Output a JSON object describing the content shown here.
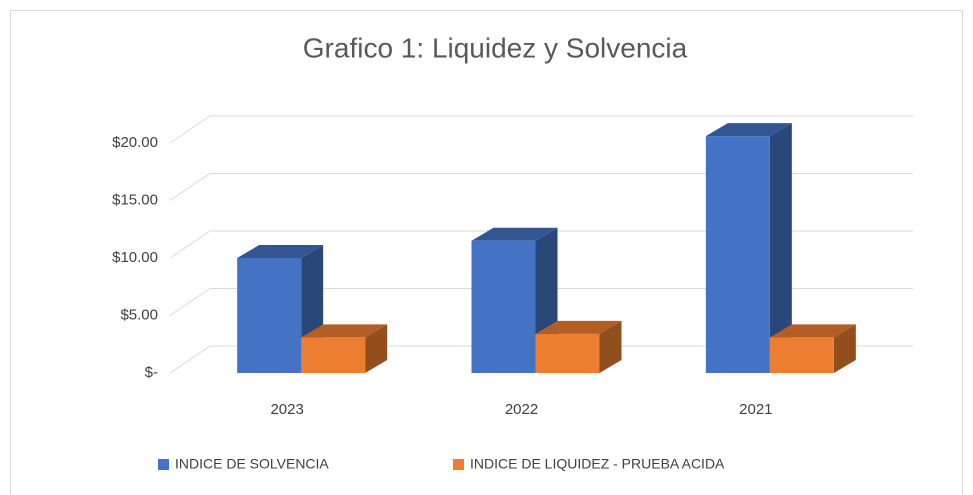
{
  "chart_data": {
    "type": "bar3d",
    "title": "Grafico 1: Liquidez y Solvencia",
    "categories": [
      "2023",
      "2022",
      "2021"
    ],
    "series": [
      {
        "name": "INDICE DE SOLVENCIA",
        "color": "#4472c4",
        "values": [
          10.0,
          11.5,
          20.6
        ]
      },
      {
        "name": "INDICE DE LIQUIDEZ - PRUEBA ACIDA",
        "color": "#ed7d31",
        "values": [
          3.1,
          3.4,
          3.1
        ]
      }
    ],
    "ylim": [
      0,
      20
    ],
    "yticks": [
      {
        "value": 0,
        "label": "$-"
      },
      {
        "value": 5,
        "label": "$5.00"
      },
      {
        "value": 10,
        "label": "$10.00"
      },
      {
        "value": 15,
        "label": "$15.00"
      },
      {
        "value": 20,
        "label": "$20.00"
      }
    ],
    "grid": true
  }
}
